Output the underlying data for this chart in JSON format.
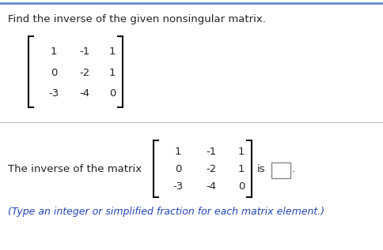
{
  "title": "Find the inverse of the given nonsingular matrix.",
  "row_labels": [
    [
      "1",
      "-1",
      "1"
    ],
    [
      "0",
      "-2",
      "1"
    ],
    [
      "-3",
      "-4",
      "0"
    ]
  ],
  "bottom_text_prefix": "The inverse of the matrix",
  "is_text": "is",
  "footnote": "(Type an integer or simplified fraction for each matrix element.)",
  "bg_color": "#ffffff",
  "text_color": "#222222",
  "blue_text_color": "#2244bb",
  "title_fontsize": 9.5,
  "matrix_fontsize": 9.5,
  "footnote_fontsize": 9.0,
  "top_bar_color": "#6688cc",
  "sep_color": "#bbbbbb",
  "bracket_color": "#000000",
  "box_edge_color": "#888888"
}
